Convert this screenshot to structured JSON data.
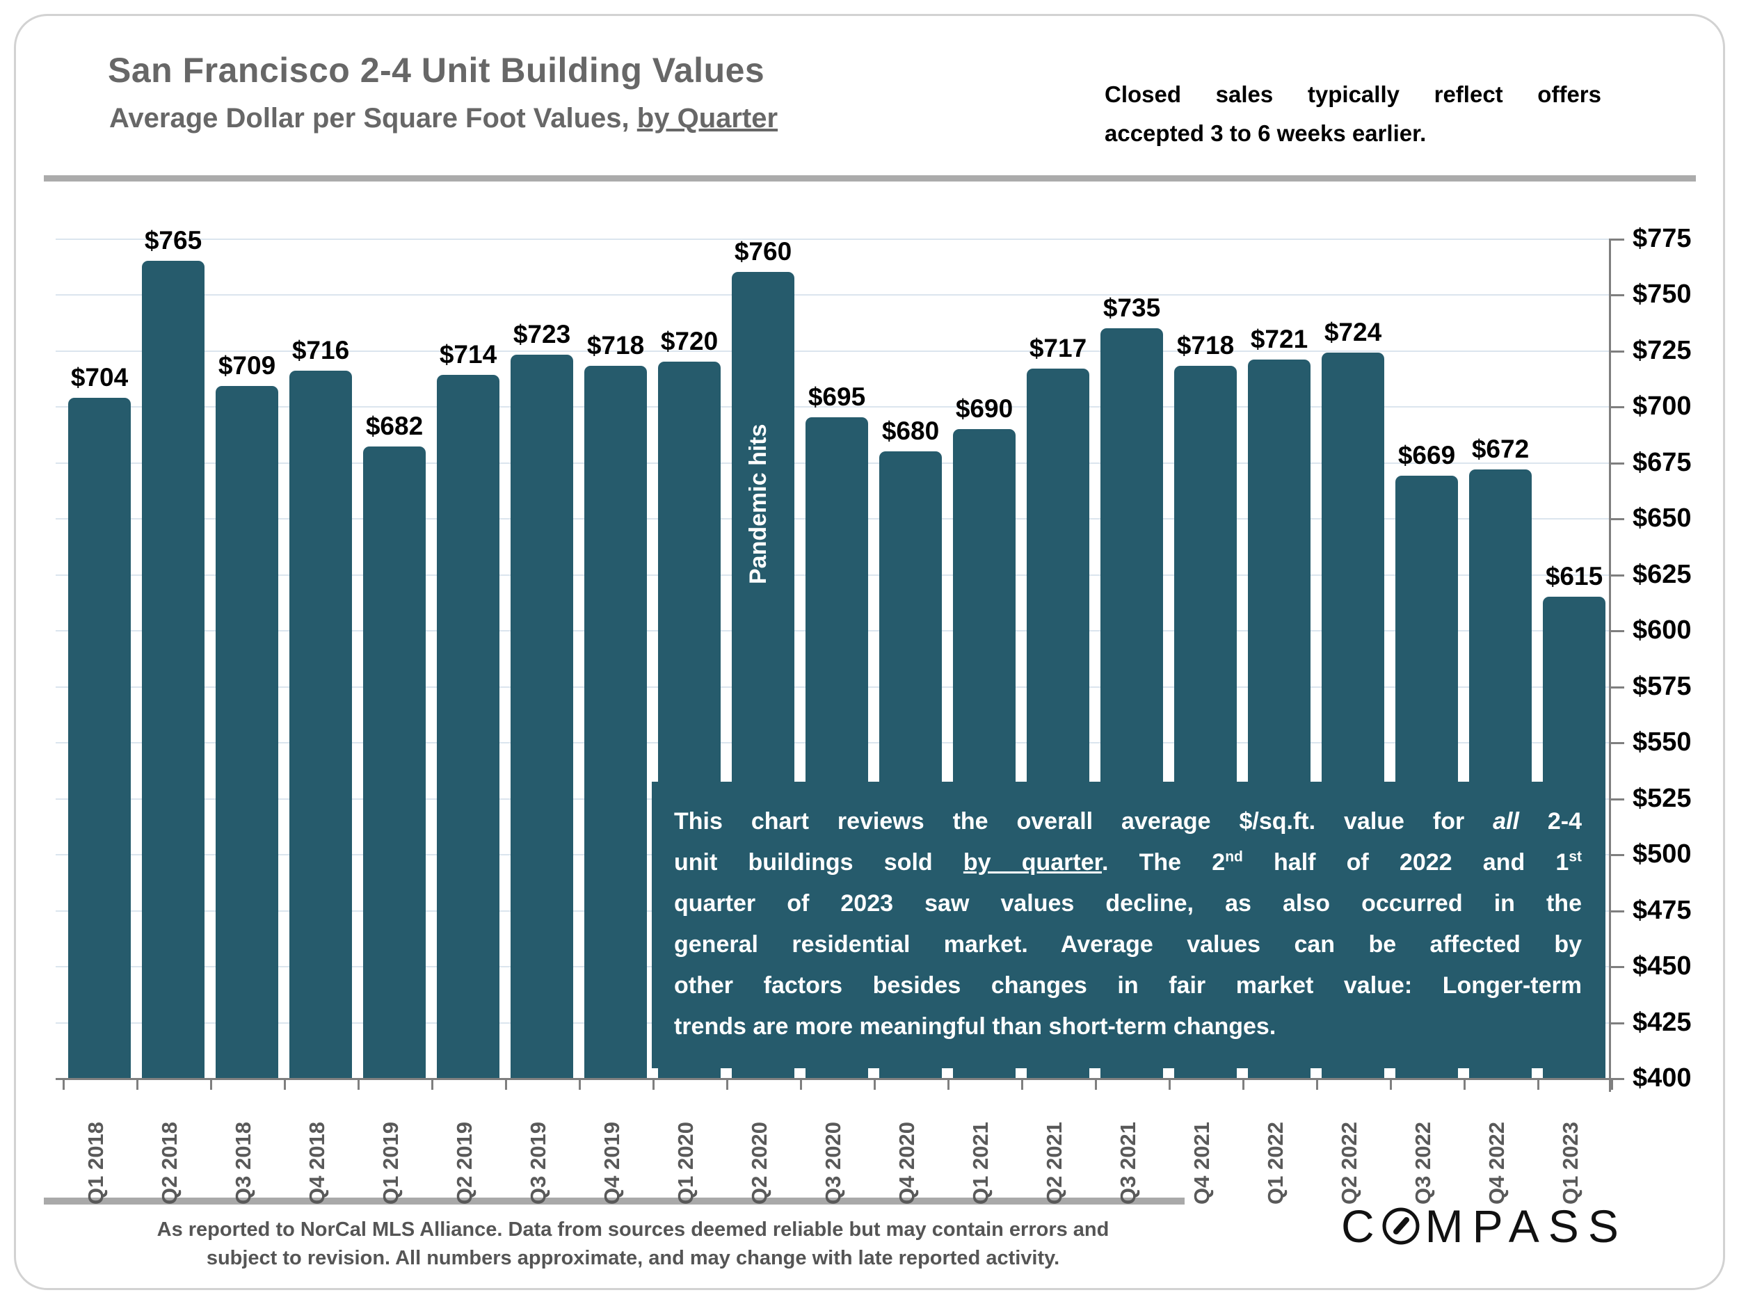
{
  "header": {
    "title": "San Francisco 2-4 Unit Building Values",
    "subtitle_prefix": "Average Dollar per Square Foot Values, ",
    "subtitle_underlined": "by Quarter",
    "note_line1": "Closed sales typically reflect offers",
    "note_line2": "accepted 3 to 6 weeks earlier."
  },
  "chart_data": {
    "type": "bar",
    "title": "San Francisco 2-4 Unit Building Values, Average Dollar per Square Foot Values, by Quarter",
    "categories": [
      "Q1 2018",
      "Q2 2018",
      "Q3 2018",
      "Q4 2018",
      "Q1 2019",
      "Q2 2019",
      "Q3 2019",
      "Q4 2019",
      "Q1 2020",
      "Q2 2020",
      "Q3 2020",
      "Q4 2020",
      "Q1 2021",
      "Q2 2021",
      "Q3 2021",
      "Q4 2021",
      "Q1 2022",
      "Q2 2022",
      "Q3 2022",
      "Q4 2022",
      "Q1 2023"
    ],
    "values": [
      704,
      765,
      709,
      716,
      682,
      714,
      723,
      718,
      720,
      760,
      695,
      680,
      690,
      717,
      735,
      718,
      721,
      724,
      669,
      672,
      615
    ],
    "bar_labels": [
      "$704",
      "$765",
      "$709",
      "$716",
      "$682",
      "$714",
      "$723",
      "$718",
      "$720",
      "$760",
      "$695",
      "$680",
      "$690",
      "$717",
      "$735",
      "$718",
      "$721",
      "$724",
      "$669",
      "$672",
      "$615"
    ],
    "ylim": [
      400,
      775
    ],
    "ytick_step": 25,
    "ytick_labels": [
      "$775",
      "$750",
      "$725",
      "$700",
      "$675",
      "$650",
      "$625",
      "$600",
      "$575",
      "$550",
      "$525",
      "$500",
      "$475",
      "$450",
      "$425",
      "$400"
    ],
    "grid": true,
    "legend": "none",
    "yaxis_position": "right",
    "bar_color": "#265b6c",
    "annotation": "Pandemic hits",
    "annotation_category": "Q2 2020"
  },
  "overlay": {
    "lines": [
      {
        "justify": true,
        "runs": [
          {
            "t": "This chart reviews the overall average $/sq.ft. value for "
          },
          {
            "t": "all",
            "style": "it"
          },
          {
            "t": " 2-4"
          }
        ]
      },
      {
        "justify": true,
        "runs": [
          {
            "t": "unit buildings sold "
          },
          {
            "t": "by quarter",
            "style": "un"
          },
          {
            "t": ". The 2"
          },
          {
            "t": "nd",
            "style": "sp"
          },
          {
            "t": " half of 2022 and 1"
          },
          {
            "t": "st",
            "style": "sp"
          }
        ]
      },
      {
        "justify": true,
        "runs": [
          {
            "t": "quarter of 2023 saw values decline, as also occurred in the"
          }
        ]
      },
      {
        "justify": true,
        "runs": [
          {
            "t": "general residential market. Average values can be affected by"
          }
        ]
      },
      {
        "justify": true,
        "runs": [
          {
            "t": "other factors besides changes in fair market value: Longer-term"
          }
        ]
      },
      {
        "justify": false,
        "runs": [
          {
            "t": "trends are more meaningful than short-term changes."
          }
        ]
      }
    ]
  },
  "footer": {
    "line1": "As reported to NorCal MLS Alliance. Data from sources deemed reliable but may contain errors and",
    "line2": "subject to revision. All numbers approximate, and may change with late reported activity.",
    "logo_first_letter": "C",
    "logo_rest": "MPASS"
  }
}
